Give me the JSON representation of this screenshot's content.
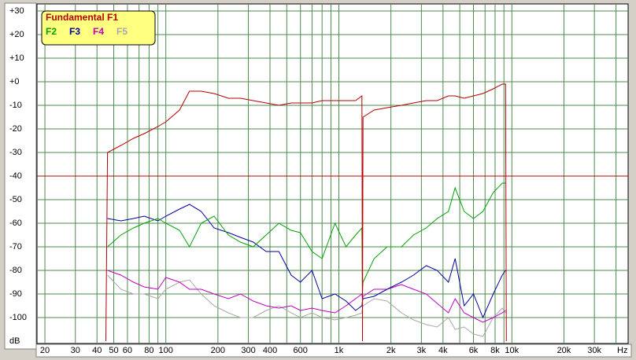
{
  "chart_data": {
    "type": "line",
    "x_label": "Hz",
    "y_label": "dB",
    "xscale": "log",
    "grid": true,
    "xlim": [
      18,
      47000
    ],
    "ylim": [
      -111,
      33
    ],
    "xticks": [
      20,
      30,
      40,
      50,
      60,
      80,
      100,
      200,
      300,
      400,
      600,
      {
        "value": 1000,
        "label": "1k"
      },
      {
        "value": 2000,
        "label": "2k"
      },
      {
        "value": 3000,
        "label": "3k"
      },
      {
        "value": 4000,
        "label": "4k"
      },
      {
        "value": 6000,
        "label": "6k"
      },
      {
        "value": 8000,
        "label": "8k"
      },
      {
        "value": 10000,
        "label": "10k"
      },
      {
        "value": 20000,
        "label": "20k"
      },
      {
        "value": 30000,
        "label": "30k"
      }
    ],
    "xminor": [
      70,
      90,
      500,
      700,
      800,
      900,
      5000,
      7000,
      9000,
      40000
    ],
    "yticks": [
      {
        "value": 30,
        "label": "+30"
      },
      {
        "value": 20,
        "label": "+20"
      },
      {
        "value": 10,
        "label": "+10"
      },
      {
        "value": 0,
        "label": "+0"
      },
      -10,
      -20,
      -30,
      -40,
      -50,
      -60,
      -70,
      -80,
      -90,
      -100
    ],
    "ref_line": {
      "value": -40,
      "color": "#c80000"
    },
    "x": [
      45,
      46,
      55,
      65,
      75,
      90,
      100,
      120,
      137,
      160,
      190,
      230,
      270,
      320,
      380,
      450,
      530,
      600,
      700,
      800,
      950,
      1100,
      1250,
      1360,
      1370,
      1380,
      1600,
      1900,
      2300,
      2700,
      3200,
      3700,
      4300,
      4700,
      5300,
      6000,
      6800,
      7800,
      8800,
      9200,
      9300
    ],
    "series": [
      {
        "name": "Fundamental F1",
        "color": "#b40000",
        "values": [
          -110,
          -30,
          -27,
          -24,
          -22,
          -19,
          -17,
          -12,
          -4,
          -4,
          -5,
          -7,
          -7,
          -8,
          -9,
          -10,
          -9,
          -9,
          -9,
          -8,
          -8,
          -8,
          -8,
          -6,
          -110,
          -15,
          -12,
          -11,
          -10,
          -9,
          -8,
          -8,
          -6,
          -6,
          -7,
          -6,
          -5,
          -3,
          -1,
          -1,
          -110
        ]
      },
      {
        "name": "F2",
        "color": "#00a000",
        "values": [
          null,
          -70,
          -65,
          -62,
          -60,
          -58,
          -60,
          -63,
          -70,
          -60,
          -57,
          -65,
          -68,
          -70,
          -65,
          -60,
          -63,
          -64,
          -72,
          -75,
          -60,
          -70,
          -65,
          -62,
          -88,
          -85,
          -75,
          -70,
          -70,
          -65,
          -62,
          -58,
          -55,
          -45,
          -55,
          -58,
          -55,
          -47,
          -43,
          -43,
          null
        ]
      },
      {
        "name": "F3",
        "color": "#0000a0",
        "values": [
          null,
          -58,
          -59,
          -58,
          -57,
          -59,
          -57,
          -54,
          -52,
          -55,
          -62,
          -64,
          -66,
          -68,
          -72,
          -72,
          -82,
          -85,
          -80,
          -92,
          -90,
          -93,
          -97,
          -95,
          -93,
          -92,
          -91,
          -88,
          -85,
          -82,
          -78,
          -80,
          -85,
          -75,
          -95,
          -90,
          -100,
          -90,
          -82,
          -80,
          null
        ]
      },
      {
        "name": "F4",
        "color": "#c000c0",
        "values": [
          null,
          -80,
          -82,
          -85,
          -87,
          -88,
          -83,
          -85,
          -88,
          -88,
          -90,
          -92,
          -90,
          -93,
          -95,
          -96,
          -95,
          -97,
          -96,
          -97,
          -98,
          -95,
          -92,
          -90,
          -92,
          -91,
          -88,
          -88,
          -86,
          -88,
          -90,
          -94,
          -98,
          -92,
          -98,
          -100,
          -102,
          -100,
          -98,
          -97,
          null
        ]
      },
      {
        "name": "F5",
        "color": "#a8a8a8",
        "values": [
          null,
          -82,
          -88,
          -90,
          -90,
          -92,
          -88,
          -85,
          -84,
          -90,
          -95,
          -98,
          -100,
          -100,
          -97,
          -95,
          -98,
          -100,
          -98,
          -100,
          -101,
          -100,
          -99,
          -98,
          -96,
          -95,
          -92,
          -93,
          -98,
          -101,
          -103,
          -104,
          -100,
          -105,
          -104,
          -107,
          -108,
          -100,
          -96,
          -98,
          null
        ]
      }
    ]
  }
}
